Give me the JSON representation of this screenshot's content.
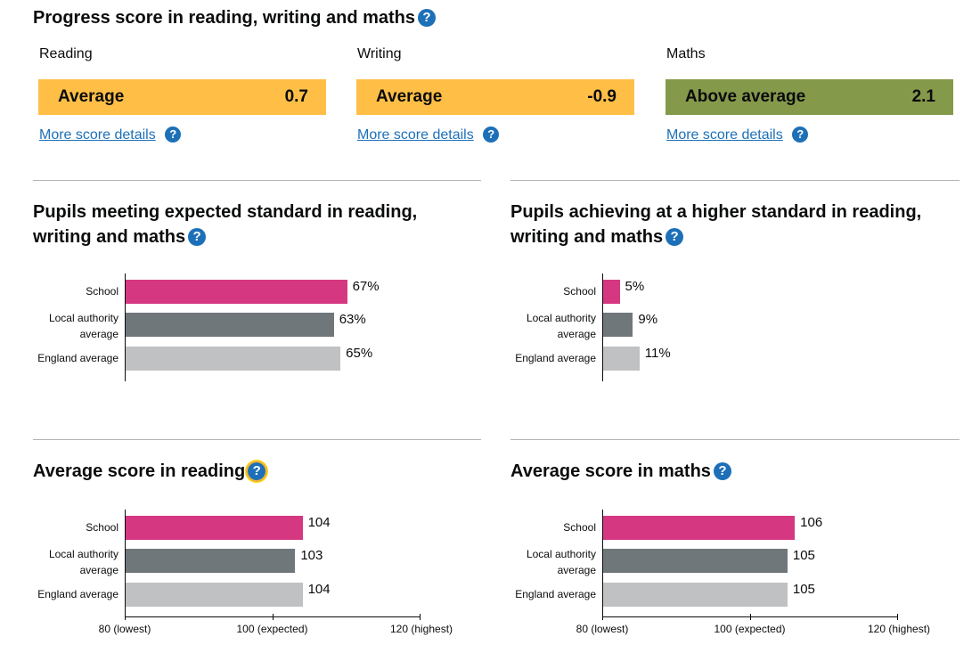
{
  "progress": {
    "title": "Progress score in reading, writing and maths",
    "subjects": [
      {
        "name": "Reading",
        "band": "Average",
        "score": "0.7",
        "color": "#ffbf47",
        "link": "More score details"
      },
      {
        "name": "Writing",
        "band": "Average",
        "score": "-0.9",
        "color": "#ffbf47",
        "link": "More score details"
      },
      {
        "name": "Maths",
        "band": "Above average",
        "score": "2.1",
        "color": "#85994b",
        "link": "More score details"
      }
    ]
  },
  "charts": [
    {
      "title": "Pupils meeting expected standard in reading, writing and maths",
      "chart_data": {
        "type": "bar",
        "orientation": "horizontal",
        "categories": [
          "School",
          "Local authority average",
          "England average"
        ],
        "values": [
          67,
          63,
          65
        ],
        "labels": [
          "67%",
          "63%",
          "65%"
        ],
        "xlim": [
          0,
          100
        ]
      }
    },
    {
      "title": "Pupils achieving at a higher standard in reading, writing and maths",
      "chart_data": {
        "type": "bar",
        "orientation": "horizontal",
        "categories": [
          "School",
          "Local authority average",
          "England average"
        ],
        "values": [
          5,
          9,
          11
        ],
        "labels": [
          "5%",
          "9%",
          "11%"
        ],
        "xlim": [
          0,
          100
        ]
      }
    },
    {
      "title": "Average score in reading",
      "chart_data": {
        "type": "bar",
        "orientation": "horizontal",
        "categories": [
          "School",
          "Local authority average",
          "England average"
        ],
        "values": [
          104,
          103,
          104
        ],
        "labels": [
          "104",
          "103",
          "104"
        ],
        "xlim": [
          80,
          120
        ],
        "xticks": [
          80,
          100,
          120
        ],
        "xtick_labels": [
          "80 (lowest)",
          "100 (expected)",
          "120 (highest)"
        ]
      }
    },
    {
      "title": "Average score in maths",
      "chart_data": {
        "type": "bar",
        "orientation": "horizontal",
        "categories": [
          "School",
          "Local authority average",
          "England average"
        ],
        "values": [
          106,
          105,
          105
        ],
        "labels": [
          "106",
          "105",
          "105"
        ],
        "xlim": [
          80,
          120
        ],
        "xticks": [
          80,
          100,
          120
        ],
        "xtick_labels": [
          "80 (lowest)",
          "100 (expected)",
          "120 (highest)"
        ]
      }
    }
  ],
  "colors": {
    "school": "#d53880",
    "local": "#6f777b",
    "england": "#bfc1c3",
    "link": "#1d70b8"
  },
  "icons": {
    "help": "question-circle-icon"
  },
  "help_glyph": "?"
}
